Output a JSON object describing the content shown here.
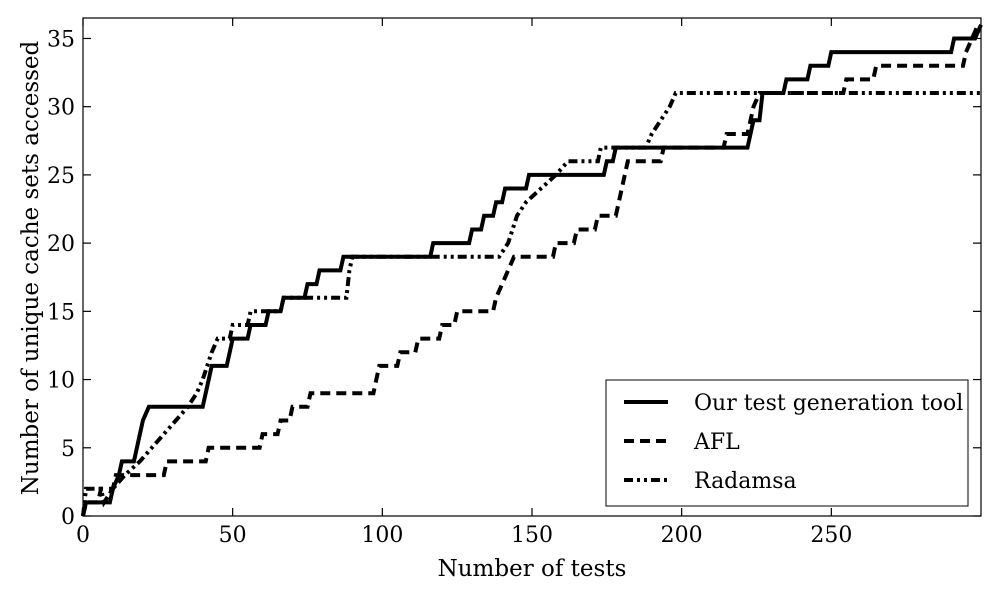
{
  "chart_data": {
    "type": "line",
    "title": "",
    "xlabel": "Number of tests",
    "ylabel": "Number of unique cache sets accessed",
    "xlim": [
      0,
      300
    ],
    "ylim": [
      0,
      36.5
    ],
    "x_ticks": [
      0,
      50,
      100,
      150,
      200,
      250
    ],
    "y_ticks": [
      0,
      5,
      10,
      15,
      20,
      25,
      30,
      35
    ],
    "grid": false,
    "legend_position": "lower-right",
    "series": [
      {
        "name": "Our test generation tool",
        "style": "solid",
        "points": [
          [
            0,
            0
          ],
          [
            1,
            1
          ],
          [
            9,
            1
          ],
          [
            10,
            2
          ],
          [
            12,
            3
          ],
          [
            13,
            4
          ],
          [
            17,
            4
          ],
          [
            18,
            5
          ],
          [
            19,
            6
          ],
          [
            20,
            7
          ],
          [
            22,
            8
          ],
          [
            40,
            8
          ],
          [
            41,
            9
          ],
          [
            42,
            10
          ],
          [
            43,
            11
          ],
          [
            48,
            11
          ],
          [
            49,
            12
          ],
          [
            50,
            13
          ],
          [
            55,
            13
          ],
          [
            56,
            14
          ],
          [
            61,
            14
          ],
          [
            62,
            15
          ],
          [
            66,
            15
          ],
          [
            67,
            16
          ],
          [
            74,
            16
          ],
          [
            75,
            17
          ],
          [
            78,
            17
          ],
          [
            79,
            18
          ],
          [
            86,
            18
          ],
          [
            87,
            19
          ],
          [
            116,
            19
          ],
          [
            117,
            20
          ],
          [
            129,
            20
          ],
          [
            130,
            21
          ],
          [
            133,
            21
          ],
          [
            134,
            22
          ],
          [
            137,
            22
          ],
          [
            138,
            23
          ],
          [
            140,
            23
          ],
          [
            141,
            24
          ],
          [
            148,
            24
          ],
          [
            149,
            25
          ],
          [
            174,
            25
          ],
          [
            175,
            26
          ],
          [
            177,
            26
          ],
          [
            178,
            27
          ],
          [
            222,
            27
          ],
          [
            223,
            28
          ],
          [
            224,
            29
          ],
          [
            226,
            29
          ],
          [
            227,
            31
          ],
          [
            234,
            31
          ],
          [
            235,
            32
          ],
          [
            242,
            32
          ],
          [
            243,
            33
          ],
          [
            249,
            33
          ],
          [
            250,
            34
          ],
          [
            290,
            34
          ],
          [
            291,
            35
          ],
          [
            298,
            35
          ],
          [
            300,
            36
          ]
        ]
      },
      {
        "name": "AFL",
        "style": "dashed",
        "points": [
          [
            0,
            0
          ],
          [
            1,
            1
          ],
          [
            5,
            1
          ],
          [
            6,
            2
          ],
          [
            10,
            2
          ],
          [
            11,
            3
          ],
          [
            27,
            3
          ],
          [
            28,
            4
          ],
          [
            41,
            4
          ],
          [
            42,
            5
          ],
          [
            59,
            5
          ],
          [
            60,
            6
          ],
          [
            65,
            6
          ],
          [
            66,
            7
          ],
          [
            69,
            7
          ],
          [
            70,
            8
          ],
          [
            75,
            8
          ],
          [
            76,
            9
          ],
          [
            97,
            9
          ],
          [
            98,
            10
          ],
          [
            99,
            11
          ],
          [
            105,
            11
          ],
          [
            106,
            12
          ],
          [
            111,
            12
          ],
          [
            112,
            13
          ],
          [
            119,
            13
          ],
          [
            120,
            14
          ],
          [
            124,
            14
          ],
          [
            125,
            15
          ],
          [
            137,
            15
          ],
          [
            138,
            16
          ],
          [
            140,
            17
          ],
          [
            142,
            18
          ],
          [
            144,
            19
          ],
          [
            157,
            19
          ],
          [
            158,
            20
          ],
          [
            164,
            20
          ],
          [
            165,
            21
          ],
          [
            171,
            21
          ],
          [
            172,
            22
          ],
          [
            178,
            22
          ],
          [
            179,
            23
          ],
          [
            180,
            24
          ],
          [
            181,
            25
          ],
          [
            182,
            26
          ],
          [
            193,
            26
          ],
          [
            194,
            27
          ],
          [
            214,
            27
          ],
          [
            215,
            28
          ],
          [
            222,
            28
          ],
          [
            223,
            29
          ],
          [
            224,
            30
          ],
          [
            226,
            31
          ],
          [
            254,
            31
          ],
          [
            255,
            32
          ],
          [
            264,
            32
          ],
          [
            265,
            33
          ],
          [
            294,
            33
          ],
          [
            295,
            34
          ],
          [
            297,
            35
          ],
          [
            299,
            36
          ]
        ]
      },
      {
        "name": "Radamsa",
        "style": "dashdotdot",
        "points": [
          [
            0,
            0
          ],
          [
            1,
            2
          ],
          [
            6,
            2
          ],
          [
            7,
            1
          ],
          [
            10,
            2
          ],
          [
            14,
            3
          ],
          [
            19,
            4
          ],
          [
            23,
            5
          ],
          [
            27,
            6
          ],
          [
            31,
            7
          ],
          [
            35,
            8
          ],
          [
            38,
            9
          ],
          [
            40,
            10
          ],
          [
            43,
            12
          ],
          [
            45,
            13
          ],
          [
            49,
            13
          ],
          [
            50,
            14
          ],
          [
            55,
            14
          ],
          [
            56,
            15
          ],
          [
            66,
            15
          ],
          [
            67,
            16
          ],
          [
            88,
            16
          ],
          [
            89,
            18
          ],
          [
            90,
            19
          ],
          [
            139,
            19
          ],
          [
            142,
            20
          ],
          [
            145,
            22
          ],
          [
            148,
            23
          ],
          [
            153,
            24
          ],
          [
            158,
            25
          ],
          [
            162,
            26
          ],
          [
            172,
            26
          ],
          [
            173,
            27
          ],
          [
            188,
            27
          ],
          [
            190,
            28
          ],
          [
            193,
            29
          ],
          [
            196,
            30
          ],
          [
            198,
            31
          ],
          [
            300,
            31
          ]
        ]
      }
    ]
  }
}
